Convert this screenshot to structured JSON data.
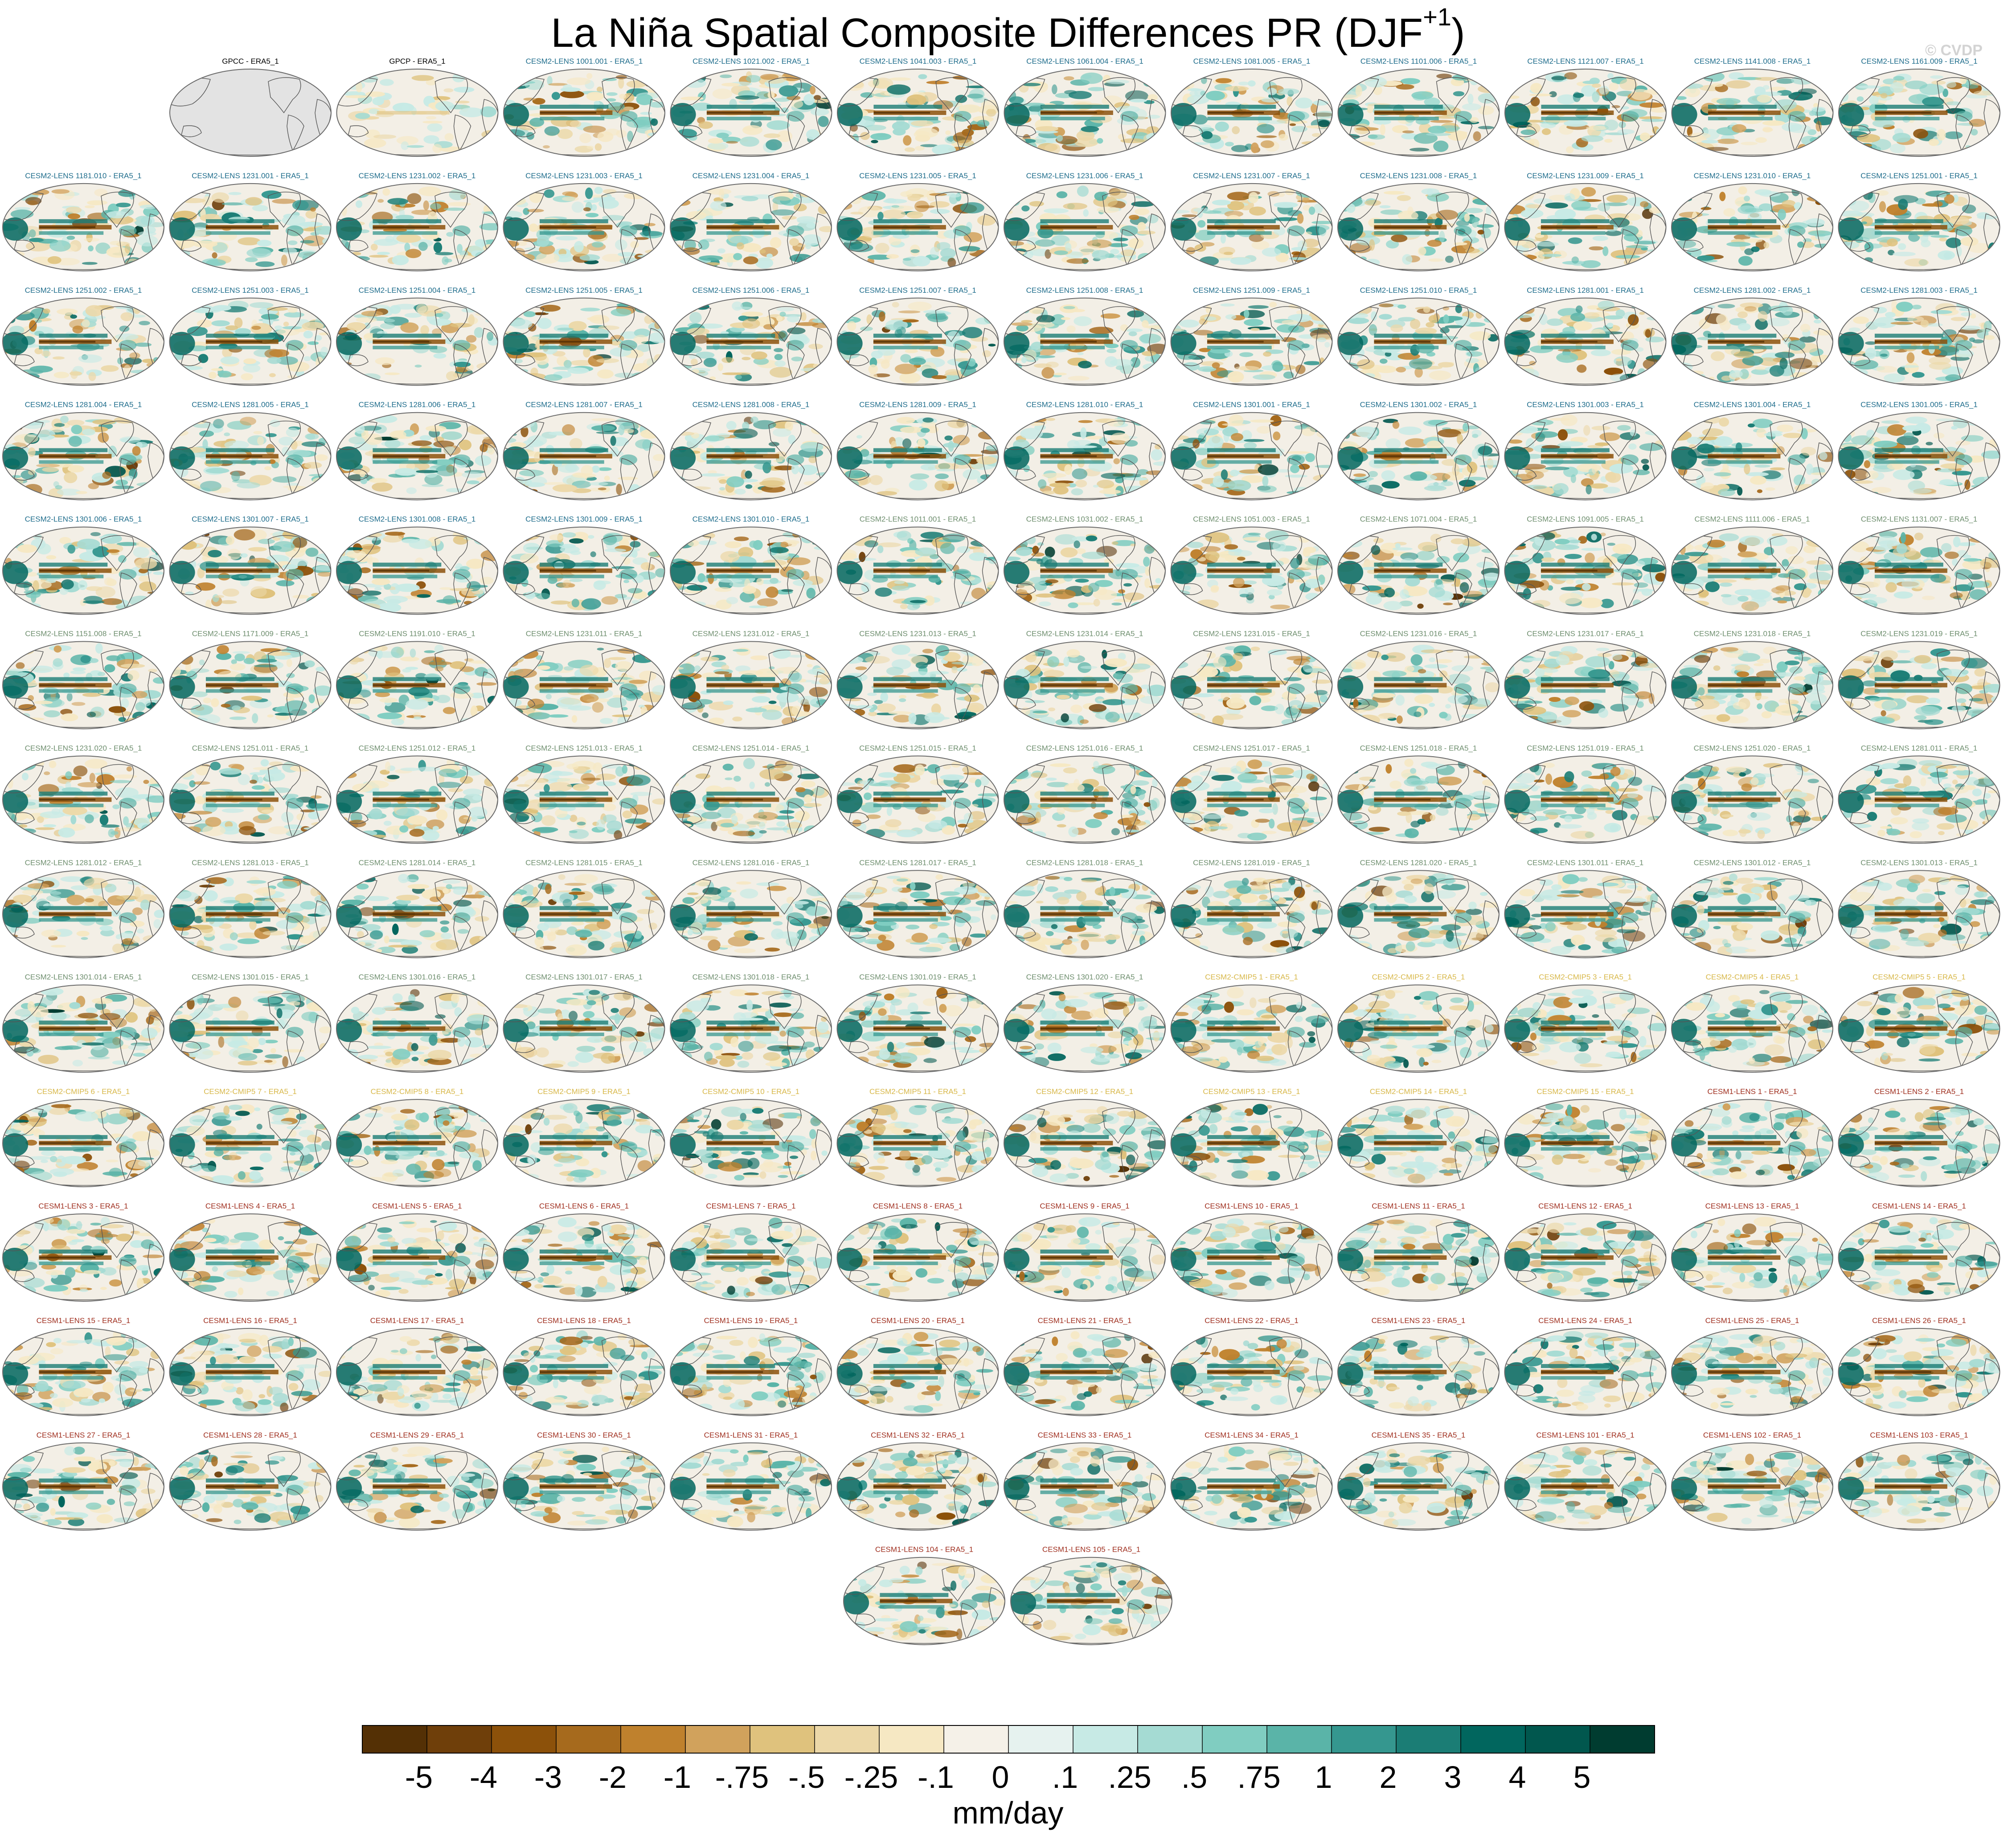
{
  "title": {
    "main": "La Niña Spatial Composite Differences PR (DJF",
    "superscript": "+1",
    "close": ")"
  },
  "watermark": "© CVDP",
  "colorbar": {
    "unit_label": "mm/day",
    "tick_labels": [
      "-5",
      "-4",
      "-3",
      "-2",
      "-1",
      "-.75",
      "-.5",
      "-.25",
      "-.1",
      "0",
      ".1",
      ".25",
      ".5",
      ".75",
      "1",
      "2",
      "3",
      "4",
      "5"
    ],
    "colors": [
      "#543005",
      "#6f3f0a",
      "#8c510a",
      "#a66a1d",
      "#bf812d",
      "#d1a25c",
      "#dfc27d",
      "#ecd8a8",
      "#f6e8c3",
      "#f5f1e8",
      "#e6f2ef",
      "#c7eae5",
      "#a5dbd3",
      "#80cdc1",
      "#5ab4a8",
      "#35978f",
      "#1b7d75",
      "#01665e",
      "#01574e",
      "#003c30"
    ]
  },
  "label_colors": {
    "obs": "#000000",
    "cesm2_a": "#1f6d8c",
    "cesm2_b": "#6f8f6f",
    "cesm2_cmip5": "#d8b84a",
    "cesm1": "#a03020"
  },
  "panels": [
    {
      "label": "GPCC - ERA5_1",
      "group": "obs",
      "blank": true
    },
    {
      "label": "GPCP - ERA5_1",
      "group": "obs",
      "faint": true
    },
    {
      "label": "CESM2-LENS 1001.001 - ERA5_1",
      "group": "cesm2_a"
    },
    {
      "label": "CESM2-LENS 1021.002 - ERA5_1",
      "group": "cesm2_a"
    },
    {
      "label": "CESM2-LENS 1041.003 - ERA5_1",
      "group": "cesm2_a"
    },
    {
      "label": "CESM2-LENS 1061.004 - ERA5_1",
      "group": "cesm2_a"
    },
    {
      "label": "CESM2-LENS 1081.005 - ERA5_1",
      "group": "cesm2_a"
    },
    {
      "label": "CESM2-LENS 1101.006 - ERA5_1",
      "group": "cesm2_a"
    },
    {
      "label": "CESM2-LENS 1121.007 - ERA5_1",
      "group": "cesm2_a"
    },
    {
      "label": "CESM2-LENS 1141.008 - ERA5_1",
      "group": "cesm2_a"
    },
    {
      "label": "CESM2-LENS 1161.009 - ERA5_1",
      "group": "cesm2_a"
    },
    {
      "label": "CESM2-LENS 1181.010 - ERA5_1",
      "group": "cesm2_a"
    },
    {
      "label": "CESM2-LENS 1231.001 - ERA5_1",
      "group": "cesm2_a"
    },
    {
      "label": "CESM2-LENS 1231.002 - ERA5_1",
      "group": "cesm2_a"
    },
    {
      "label": "CESM2-LENS 1231.003 - ERA5_1",
      "group": "cesm2_a"
    },
    {
      "label": "CESM2-LENS 1231.004 - ERA5_1",
      "group": "cesm2_a"
    },
    {
      "label": "CESM2-LENS 1231.005 - ERA5_1",
      "group": "cesm2_a"
    },
    {
      "label": "CESM2-LENS 1231.006 - ERA5_1",
      "group": "cesm2_a"
    },
    {
      "label": "CESM2-LENS 1231.007 - ERA5_1",
      "group": "cesm2_a"
    },
    {
      "label": "CESM2-LENS 1231.008 - ERA5_1",
      "group": "cesm2_a"
    },
    {
      "label": "CESM2-LENS 1231.009 - ERA5_1",
      "group": "cesm2_a"
    },
    {
      "label": "CESM2-LENS 1231.010 - ERA5_1",
      "group": "cesm2_a"
    },
    {
      "label": "CESM2-LENS 1251.001 - ERA5_1",
      "group": "cesm2_a"
    },
    {
      "label": "CESM2-LENS 1251.002 - ERA5_1",
      "group": "cesm2_a"
    },
    {
      "label": "CESM2-LENS 1251.003 - ERA5_1",
      "group": "cesm2_a"
    },
    {
      "label": "CESM2-LENS 1251.004 - ERA5_1",
      "group": "cesm2_a"
    },
    {
      "label": "CESM2-LENS 1251.005 - ERA5_1",
      "group": "cesm2_a"
    },
    {
      "label": "CESM2-LENS 1251.006 - ERA5_1",
      "group": "cesm2_a"
    },
    {
      "label": "CESM2-LENS 1251.007 - ERA5_1",
      "group": "cesm2_a"
    },
    {
      "label": "CESM2-LENS 1251.008 - ERA5_1",
      "group": "cesm2_a"
    },
    {
      "label": "CESM2-LENS 1251.009 - ERA5_1",
      "group": "cesm2_a"
    },
    {
      "label": "CESM2-LENS 1251.010 - ERA5_1",
      "group": "cesm2_a"
    },
    {
      "label": "CESM2-LENS 1281.001 - ERA5_1",
      "group": "cesm2_a"
    },
    {
      "label": "CESM2-LENS 1281.002 - ERA5_1",
      "group": "cesm2_a"
    },
    {
      "label": "CESM2-LENS 1281.003 - ERA5_1",
      "group": "cesm2_a"
    },
    {
      "label": "CESM2-LENS 1281.004 - ERA5_1",
      "group": "cesm2_a"
    },
    {
      "label": "CESM2-LENS 1281.005 - ERA5_1",
      "group": "cesm2_a"
    },
    {
      "label": "CESM2-LENS 1281.006 - ERA5_1",
      "group": "cesm2_a"
    },
    {
      "label": "CESM2-LENS 1281.007 - ERA5_1",
      "group": "cesm2_a"
    },
    {
      "label": "CESM2-LENS 1281.008 - ERA5_1",
      "group": "cesm2_a"
    },
    {
      "label": "CESM2-LENS 1281.009 - ERA5_1",
      "group": "cesm2_a"
    },
    {
      "label": "CESM2-LENS 1281.010 - ERA5_1",
      "group": "cesm2_a"
    },
    {
      "label": "CESM2-LENS 1301.001 - ERA5_1",
      "group": "cesm2_a"
    },
    {
      "label": "CESM2-LENS 1301.002 - ERA5_1",
      "group": "cesm2_a"
    },
    {
      "label": "CESM2-LENS 1301.003 - ERA5_1",
      "group": "cesm2_a"
    },
    {
      "label": "CESM2-LENS 1301.004 - ERA5_1",
      "group": "cesm2_a"
    },
    {
      "label": "CESM2-LENS 1301.005 - ERA5_1",
      "group": "cesm2_a"
    },
    {
      "label": "CESM2-LENS 1301.006 - ERA5_1",
      "group": "cesm2_a"
    },
    {
      "label": "CESM2-LENS 1301.007 - ERA5_1",
      "group": "cesm2_a"
    },
    {
      "label": "CESM2-LENS 1301.008 - ERA5_1",
      "group": "cesm2_a"
    },
    {
      "label": "CESM2-LENS 1301.009 - ERA5_1",
      "group": "cesm2_a"
    },
    {
      "label": "CESM2-LENS 1301.010 - ERA5_1",
      "group": "cesm2_a"
    },
    {
      "label": "CESM2-LENS 1011.001 - ERA5_1",
      "group": "cesm2_b"
    },
    {
      "label": "CESM2-LENS 1031.002 - ERA5_1",
      "group": "cesm2_b"
    },
    {
      "label": "CESM2-LENS 1051.003 - ERA5_1",
      "group": "cesm2_b"
    },
    {
      "label": "CESM2-LENS 1071.004 - ERA5_1",
      "group": "cesm2_b"
    },
    {
      "label": "CESM2-LENS 1091.005 - ERA5_1",
      "group": "cesm2_b"
    },
    {
      "label": "CESM2-LENS 1111.006 - ERA5_1",
      "group": "cesm2_b"
    },
    {
      "label": "CESM2-LENS 1131.007 - ERA5_1",
      "group": "cesm2_b"
    },
    {
      "label": "CESM2-LENS 1151.008 - ERA5_1",
      "group": "cesm2_b"
    },
    {
      "label": "CESM2-LENS 1171.009 - ERA5_1",
      "group": "cesm2_b"
    },
    {
      "label": "CESM2-LENS 1191.010 - ERA5_1",
      "group": "cesm2_b"
    },
    {
      "label": "CESM2-LENS 1231.011 - ERA5_1",
      "group": "cesm2_b"
    },
    {
      "label": "CESM2-LENS 1231.012 - ERA5_1",
      "group": "cesm2_b"
    },
    {
      "label": "CESM2-LENS 1231.013 - ERA5_1",
      "group": "cesm2_b"
    },
    {
      "label": "CESM2-LENS 1231.014 - ERA5_1",
      "group": "cesm2_b"
    },
    {
      "label": "CESM2-LENS 1231.015 - ERA5_1",
      "group": "cesm2_b"
    },
    {
      "label": "CESM2-LENS 1231.016 - ERA5_1",
      "group": "cesm2_b"
    },
    {
      "label": "CESM2-LENS 1231.017 - ERA5_1",
      "group": "cesm2_b"
    },
    {
      "label": "CESM2-LENS 1231.018 - ERA5_1",
      "group": "cesm2_b"
    },
    {
      "label": "CESM2-LENS 1231.019 - ERA5_1",
      "group": "cesm2_b"
    },
    {
      "label": "CESM2-LENS 1231.020 - ERA5_1",
      "group": "cesm2_b"
    },
    {
      "label": "CESM2-LENS 1251.011 - ERA5_1",
      "group": "cesm2_b"
    },
    {
      "label": "CESM2-LENS 1251.012 - ERA5_1",
      "group": "cesm2_b"
    },
    {
      "label": "CESM2-LENS 1251.013 - ERA5_1",
      "group": "cesm2_b"
    },
    {
      "label": "CESM2-LENS 1251.014 - ERA5_1",
      "group": "cesm2_b"
    },
    {
      "label": "CESM2-LENS 1251.015 - ERA5_1",
      "group": "cesm2_b"
    },
    {
      "label": "CESM2-LENS 1251.016 - ERA5_1",
      "group": "cesm2_b"
    },
    {
      "label": "CESM2-LENS 1251.017 - ERA5_1",
      "group": "cesm2_b"
    },
    {
      "label": "CESM2-LENS 1251.018 - ERA5_1",
      "group": "cesm2_b"
    },
    {
      "label": "CESM2-LENS 1251.019 - ERA5_1",
      "group": "cesm2_b"
    },
    {
      "label": "CESM2-LENS 1251.020 - ERA5_1",
      "group": "cesm2_b"
    },
    {
      "label": "CESM2-LENS 1281.011 - ERA5_1",
      "group": "cesm2_b"
    },
    {
      "label": "CESM2-LENS 1281.012 - ERA5_1",
      "group": "cesm2_b"
    },
    {
      "label": "CESM2-LENS 1281.013 - ERA5_1",
      "group": "cesm2_b"
    },
    {
      "label": "CESM2-LENS 1281.014 - ERA5_1",
      "group": "cesm2_b"
    },
    {
      "label": "CESM2-LENS 1281.015 - ERA5_1",
      "group": "cesm2_b"
    },
    {
      "label": "CESM2-LENS 1281.016 - ERA5_1",
      "group": "cesm2_b"
    },
    {
      "label": "CESM2-LENS 1281.017 - ERA5_1",
      "group": "cesm2_b"
    },
    {
      "label": "CESM2-LENS 1281.018 - ERA5_1",
      "group": "cesm2_b"
    },
    {
      "label": "CESM2-LENS 1281.019 - ERA5_1",
      "group": "cesm2_b"
    },
    {
      "label": "CESM2-LENS 1281.020 - ERA5_1",
      "group": "cesm2_b"
    },
    {
      "label": "CESM2-LENS 1301.011 - ERA5_1",
      "group": "cesm2_b"
    },
    {
      "label": "CESM2-LENS 1301.012 - ERA5_1",
      "group": "cesm2_b"
    },
    {
      "label": "CESM2-LENS 1301.013 - ERA5_1",
      "group": "cesm2_b"
    },
    {
      "label": "CESM2-LENS 1301.014 - ERA5_1",
      "group": "cesm2_b"
    },
    {
      "label": "CESM2-LENS 1301.015 - ERA5_1",
      "group": "cesm2_b"
    },
    {
      "label": "CESM2-LENS 1301.016 - ERA5_1",
      "group": "cesm2_b"
    },
    {
      "label": "CESM2-LENS 1301.017 - ERA5_1",
      "group": "cesm2_b"
    },
    {
      "label": "CESM2-LENS 1301.018 - ERA5_1",
      "group": "cesm2_b"
    },
    {
      "label": "CESM2-LENS 1301.019 - ERA5_1",
      "group": "cesm2_b"
    },
    {
      "label": "CESM2-LENS 1301.020 - ERA5_1",
      "group": "cesm2_b"
    },
    {
      "label": "CESM2-CMIP5 1 - ERA5_1",
      "group": "cesm2_cmip5"
    },
    {
      "label": "CESM2-CMIP5 2 - ERA5_1",
      "group": "cesm2_cmip5"
    },
    {
      "label": "CESM2-CMIP5 3 - ERA5_1",
      "group": "cesm2_cmip5"
    },
    {
      "label": "CESM2-CMIP5 4 - ERA5_1",
      "group": "cesm2_cmip5"
    },
    {
      "label": "CESM2-CMIP5 5 - ERA5_1",
      "group": "cesm2_cmip5"
    },
    {
      "label": "CESM2-CMIP5 6 - ERA5_1",
      "group": "cesm2_cmip5"
    },
    {
      "label": "CESM2-CMIP5 7 - ERA5_1",
      "group": "cesm2_cmip5"
    },
    {
      "label": "CESM2-CMIP5 8 - ERA5_1",
      "group": "cesm2_cmip5"
    },
    {
      "label": "CESM2-CMIP5 9 - ERA5_1",
      "group": "cesm2_cmip5"
    },
    {
      "label": "CESM2-CMIP5 10 - ERA5_1",
      "group": "cesm2_cmip5"
    },
    {
      "label": "CESM2-CMIP5 11 - ERA5_1",
      "group": "cesm2_cmip5"
    },
    {
      "label": "CESM2-CMIP5 12 - ERA5_1",
      "group": "cesm2_cmip5"
    },
    {
      "label": "CESM2-CMIP5 13 - ERA5_1",
      "group": "cesm2_cmip5"
    },
    {
      "label": "CESM2-CMIP5 14 - ERA5_1",
      "group": "cesm2_cmip5"
    },
    {
      "label": "CESM2-CMIP5 15 - ERA5_1",
      "group": "cesm2_cmip5"
    },
    {
      "label": "CESM1-LENS 1 - ERA5_1",
      "group": "cesm1"
    },
    {
      "label": "CESM1-LENS 2 - ERA5_1",
      "group": "cesm1"
    },
    {
      "label": "CESM1-LENS 3 - ERA5_1",
      "group": "cesm1"
    },
    {
      "label": "CESM1-LENS 4 - ERA5_1",
      "group": "cesm1"
    },
    {
      "label": "CESM1-LENS 5 - ERA5_1",
      "group": "cesm1"
    },
    {
      "label": "CESM1-LENS 6 - ERA5_1",
      "group": "cesm1"
    },
    {
      "label": "CESM1-LENS 7 - ERA5_1",
      "group": "cesm1"
    },
    {
      "label": "CESM1-LENS 8 - ERA5_1",
      "group": "cesm1"
    },
    {
      "label": "CESM1-LENS 9 - ERA5_1",
      "group": "cesm1"
    },
    {
      "label": "CESM1-LENS 10 - ERA5_1",
      "group": "cesm1"
    },
    {
      "label": "CESM1-LENS 11 - ERA5_1",
      "group": "cesm1"
    },
    {
      "label": "CESM1-LENS 12 - ERA5_1",
      "group": "cesm1"
    },
    {
      "label": "CESM1-LENS 13 - ERA5_1",
      "group": "cesm1"
    },
    {
      "label": "CESM1-LENS 14 - ERA5_1",
      "group": "cesm1"
    },
    {
      "label": "CESM1-LENS 15 - ERA5_1",
      "group": "cesm1"
    },
    {
      "label": "CESM1-LENS 16 - ERA5_1",
      "group": "cesm1"
    },
    {
      "label": "CESM1-LENS 17 - ERA5_1",
      "group": "cesm1"
    },
    {
      "label": "CESM1-LENS 18 - ERA5_1",
      "group": "cesm1"
    },
    {
      "label": "CESM1-LENS 19 - ERA5_1",
      "group": "cesm1"
    },
    {
      "label": "CESM1-LENS 20 - ERA5_1",
      "group": "cesm1"
    },
    {
      "label": "CESM1-LENS 21 - ERA5_1",
      "group": "cesm1"
    },
    {
      "label": "CESM1-LENS 22 - ERA5_1",
      "group": "cesm1"
    },
    {
      "label": "CESM1-LENS 23 - ERA5_1",
      "group": "cesm1"
    },
    {
      "label": "CESM1-LENS 24 - ERA5_1",
      "group": "cesm1"
    },
    {
      "label": "CESM1-LENS 25 - ERA5_1",
      "group": "cesm1"
    },
    {
      "label": "CESM1-LENS 26 - ERA5_1",
      "group": "cesm1"
    },
    {
      "label": "CESM1-LENS 27 - ERA5_1",
      "group": "cesm1"
    },
    {
      "label": "CESM1-LENS 28 - ERA5_1",
      "group": "cesm1"
    },
    {
      "label": "CESM1-LENS 29 - ERA5_1",
      "group": "cesm1"
    },
    {
      "label": "CESM1-LENS 30 - ERA5_1",
      "group": "cesm1"
    },
    {
      "label": "CESM1-LENS 31 - ERA5_1",
      "group": "cesm1"
    },
    {
      "label": "CESM1-LENS 32 - ERA5_1",
      "group": "cesm1"
    },
    {
      "label": "CESM1-LENS 33 - ERA5_1",
      "group": "cesm1"
    },
    {
      "label": "CESM1-LENS 34 - ERA5_1",
      "group": "cesm1"
    },
    {
      "label": "CESM1-LENS 35 - ERA5_1",
      "group": "cesm1"
    },
    {
      "label": "CESM1-LENS 101 - ERA5_1",
      "group": "cesm1"
    },
    {
      "label": "CESM1-LENS 102 - ERA5_1",
      "group": "cesm1"
    },
    {
      "label": "CESM1-LENS 103 - ERA5_1",
      "group": "cesm1"
    },
    {
      "label": "CESM1-LENS 104 - ERA5_1",
      "group": "cesm1"
    },
    {
      "label": "CESM1-LENS 105 - ERA5_1",
      "group": "cesm1"
    }
  ],
  "chart_data": {
    "type": "heatmap",
    "grid": "small multiples of global precipitation difference maps",
    "colorbar_levels": [
      -5,
      -4,
      -3,
      -2,
      -1,
      -0.75,
      -0.5,
      -0.25,
      -0.1,
      0,
      0.1,
      0.25,
      0.5,
      0.75,
      1,
      2,
      3,
      4,
      5
    ],
    "colorbar_extends_both_ends": true
  }
}
